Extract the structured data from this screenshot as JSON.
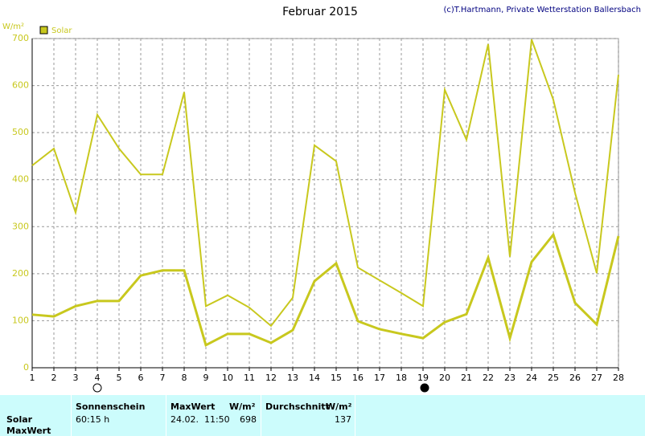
{
  "chart_data": {
    "type": "line",
    "title": "Februar 2015",
    "subtitle": "(c)T.Hartmann, Private Wetterstation Ballersbach",
    "y_label": "W/m²",
    "x": [
      1,
      2,
      3,
      4,
      5,
      6,
      7,
      8,
      9,
      10,
      11,
      12,
      13,
      14,
      15,
      16,
      17,
      18,
      19,
      20,
      21,
      22,
      23,
      24,
      25,
      26,
      27,
      28
    ],
    "series": [
      {
        "name": "Solar",
        "color": "#c8c81e",
        "values": [
          113,
          109,
          131,
          142,
          142,
          196,
          207,
          207,
          48,
          72,
          72,
          53,
          80,
          184,
          222,
          99,
          82,
          72,
          63,
          97,
          114,
          234,
          63,
          225,
          283,
          138,
          92,
          280
        ]
      },
      {
        "color": "#c8c81e",
        "values": [
          430,
          466,
          330,
          538,
          466,
          411,
          411,
          586,
          131,
          154,
          128,
          89,
          149,
          473,
          439,
          213,
          186,
          159,
          131,
          591,
          485,
          688,
          236,
          698,
          570,
          372,
          201,
          623
        ]
      }
    ],
    "xlim": [
      1,
      28
    ],
    "xticks": [
      1,
      2,
      3,
      4,
      5,
      6,
      7,
      8,
      9,
      10,
      11,
      12,
      13,
      14,
      15,
      16,
      17,
      18,
      19,
      20,
      21,
      22,
      23,
      24,
      25,
      26,
      27,
      28
    ],
    "ylim": [
      0,
      700
    ],
    "yticks": [
      0,
      100,
      200,
      300,
      400,
      500,
      600,
      700
    ],
    "grid": true
  },
  "table": {
    "headers": [
      "Sonnenschein",
      "MaxWert",
      "W/m²",
      "Durchschnitt",
      "W/m²"
    ],
    "rows": [
      [
        "Solar",
        "60:15 h",
        "24.02.  11:50",
        "698",
        "137"
      ],
      [
        "MaxWert"
      ]
    ]
  }
}
